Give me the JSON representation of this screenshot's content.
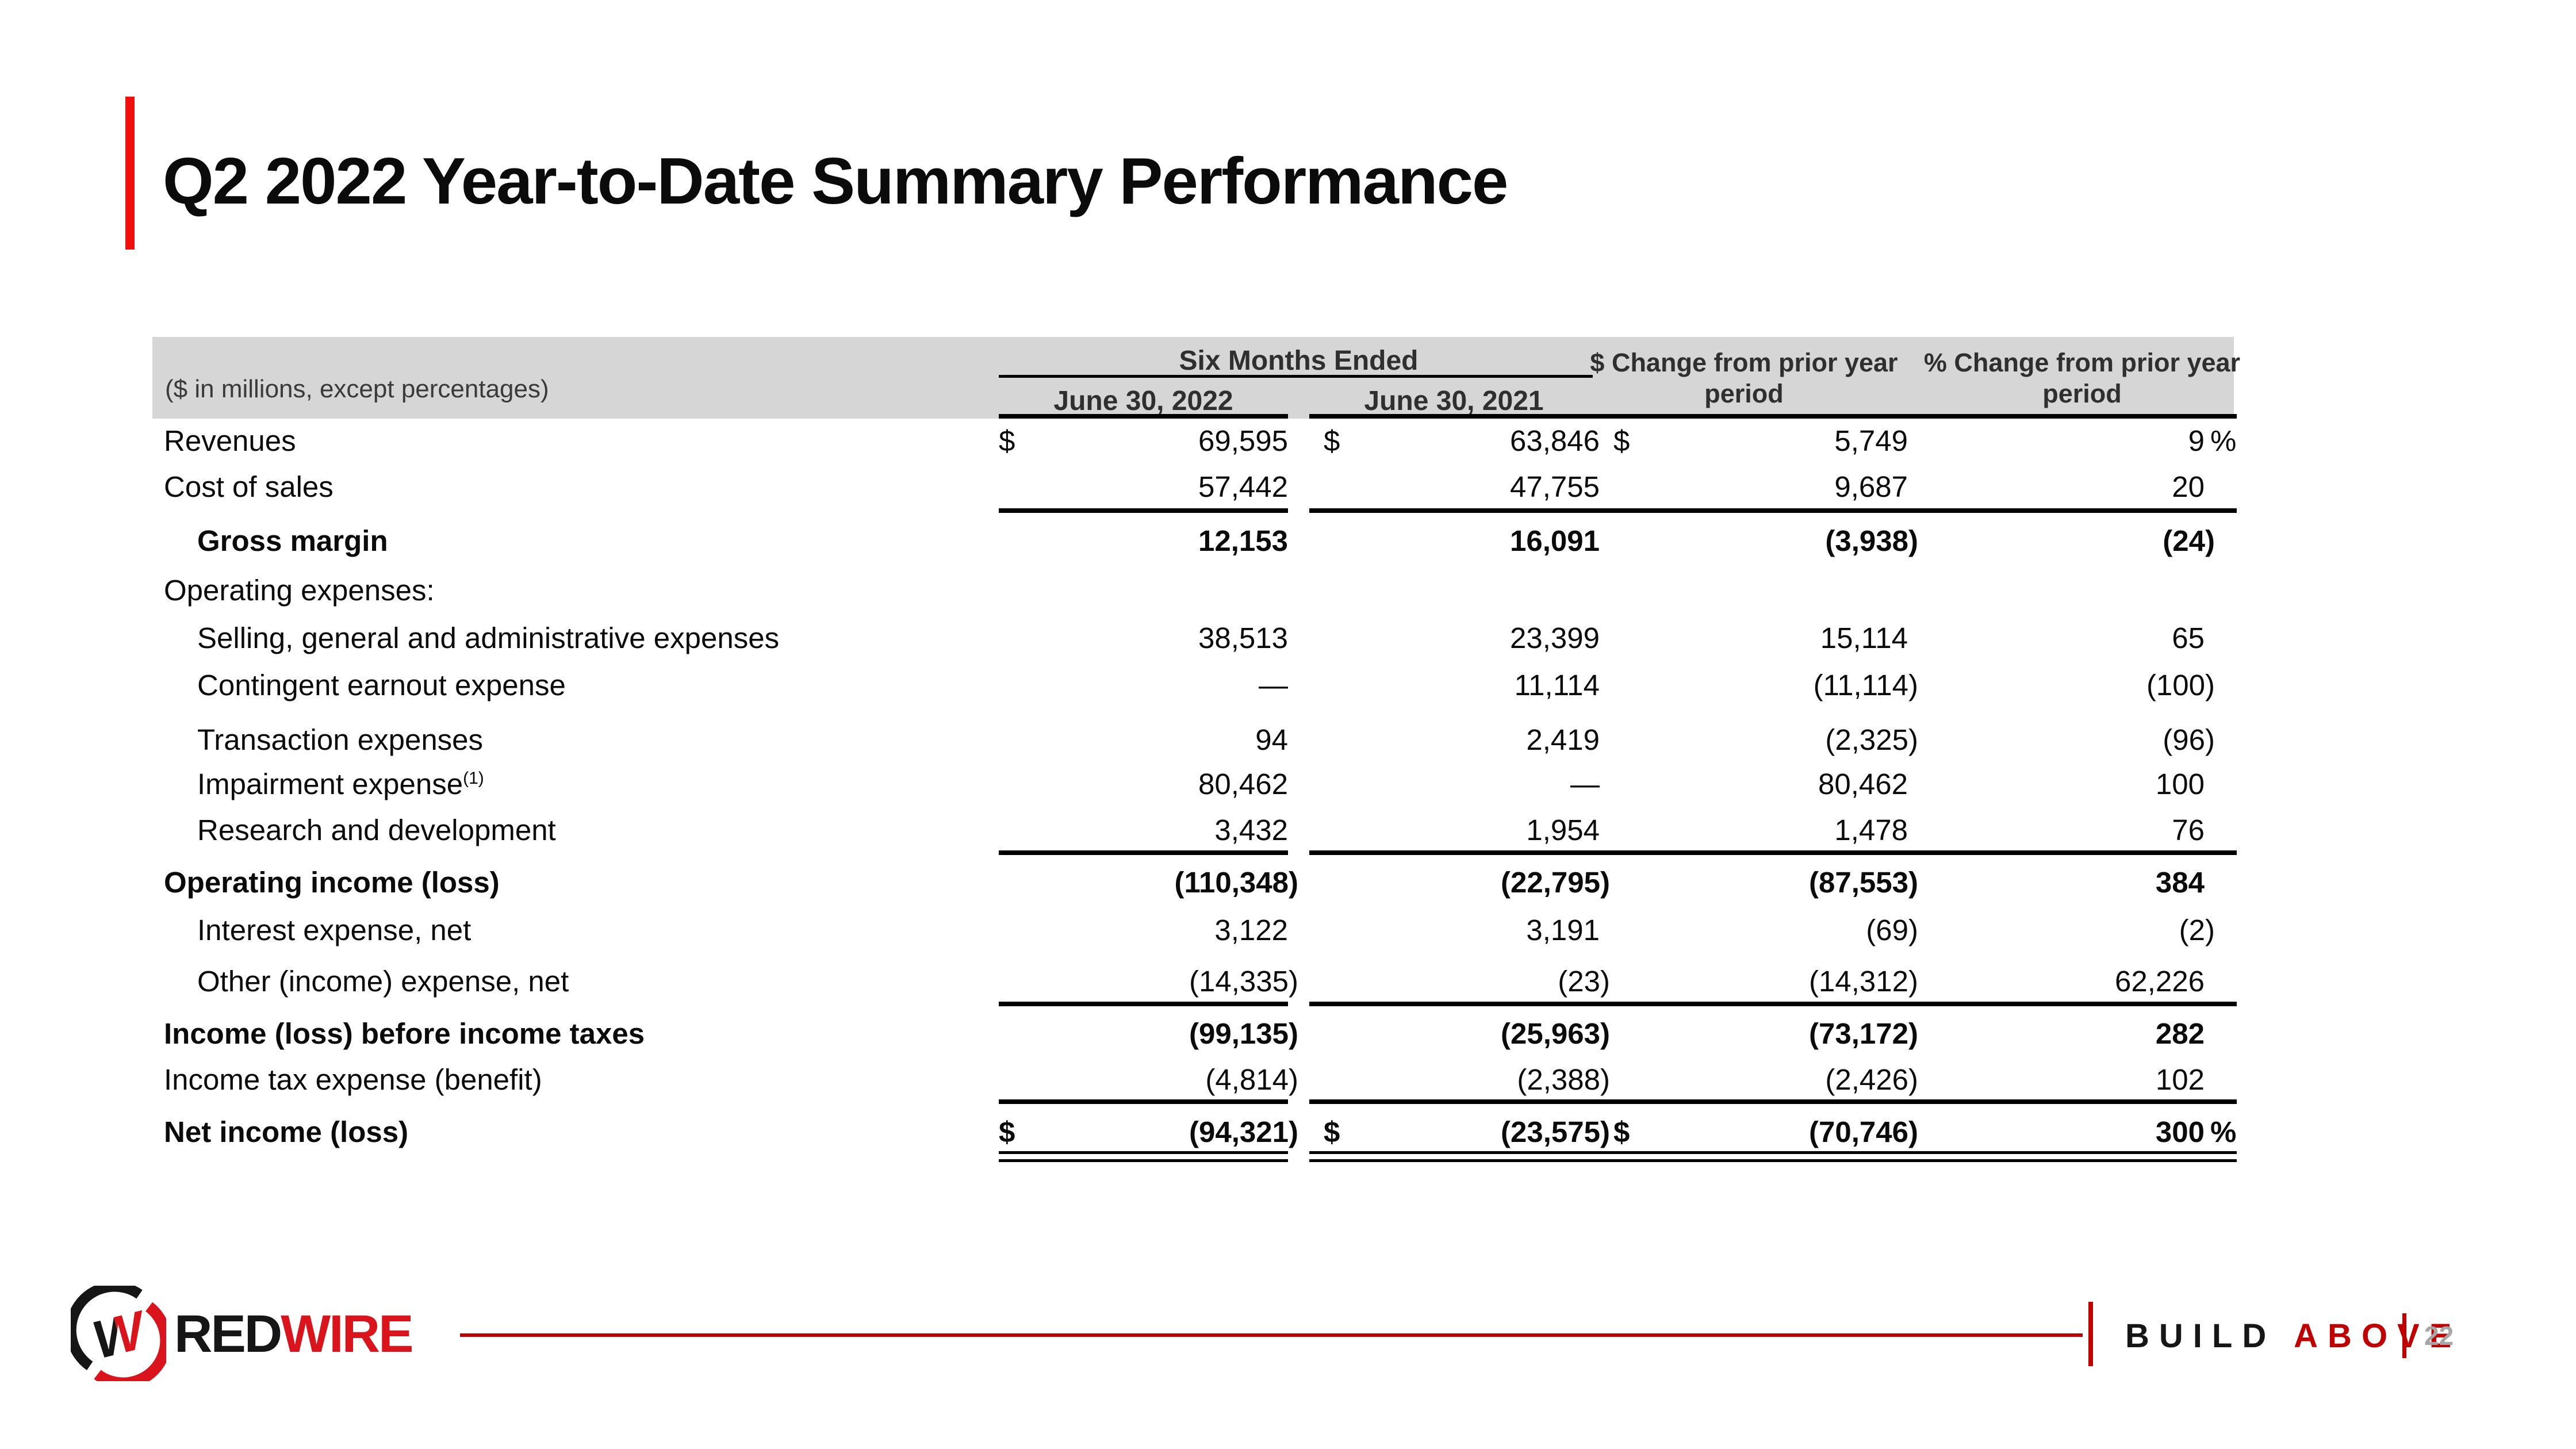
{
  "title": "Q2 2022 Year-to-Date Summary Performance",
  "colors": {
    "accent": "#f10e0e",
    "brand": "#d9141c",
    "rule_red": "#c00000",
    "band": "#d6d6d6",
    "muted": "#a6a6a6"
  },
  "table": {
    "header": {
      "caption": "($ in millions, except percentages)",
      "group": "Six Months Ended",
      "col_2022": "June 30, 2022",
      "col_2021": "June 30, 2021",
      "col_dollar_change": "$ Change from prior year period",
      "col_percent_change": "% Change from prior year period"
    },
    "rows": [
      {
        "label": "Revenues",
        "indent": 0,
        "bold": false,
        "d1": "$",
        "v1": "69,595",
        "d2": "$",
        "v2": "63,846",
        "d3": "$",
        "v3": "5,749",
        "v4": "9",
        "pct": "%"
      },
      {
        "label": "Cost of sales",
        "indent": 0,
        "bold": false,
        "d1": "",
        "v1": "57,442",
        "d2": "",
        "v2": "47,755",
        "d3": "",
        "v3": "9,687",
        "v4": "20",
        "pct": ""
      },
      {
        "label": "Gross margin",
        "indent": 1,
        "bold": true,
        "d1": "",
        "v1": "12,153",
        "d2": "",
        "v2": "16,091",
        "d3": "",
        "v3": "(3,938)",
        "v4": "(24)",
        "pct": ""
      },
      {
        "label": "Operating expenses:",
        "indent": 0,
        "bold": false,
        "d1": "",
        "v1": "",
        "d2": "",
        "v2": "",
        "d3": "",
        "v3": "",
        "v4": "",
        "pct": ""
      },
      {
        "label": "Selling, general and administrative expenses",
        "indent": 1,
        "bold": false,
        "d1": "",
        "v1": "38,513",
        "d2": "",
        "v2": "23,399",
        "d3": "",
        "v3": "15,114",
        "v4": "65",
        "pct": ""
      },
      {
        "label": "Contingent earnout expense",
        "indent": 1,
        "bold": false,
        "d1": "",
        "v1": "—",
        "d2": "",
        "v2": "11,114",
        "d3": "",
        "v3": "(11,114)",
        "v4": "(100)",
        "pct": ""
      },
      {
        "label": "Transaction expenses",
        "indent": 1,
        "bold": false,
        "d1": "",
        "v1": "94",
        "d2": "",
        "v2": "2,419",
        "d3": "",
        "v3": "(2,325)",
        "v4": "(96)",
        "pct": ""
      },
      {
        "label": "Impairment expense",
        "sup": "(1)",
        "indent": 1,
        "bold": false,
        "d1": "",
        "v1": "80,462",
        "d2": "",
        "v2": "—",
        "d3": "",
        "v3": "80,462",
        "v4": "100",
        "pct": ""
      },
      {
        "label": "Research and development",
        "indent": 1,
        "bold": false,
        "d1": "",
        "v1": "3,432",
        "d2": "",
        "v2": "1,954",
        "d3": "",
        "v3": "1,478",
        "v4": "76",
        "pct": ""
      },
      {
        "label": "Operating income (loss)",
        "indent": 0,
        "bold": true,
        "d1": "",
        "v1": "(110,348)",
        "d2": "",
        "v2": "(22,795)",
        "d3": "",
        "v3": "(87,553)",
        "v4": "384",
        "pct": ""
      },
      {
        "label": "Interest expense, net",
        "indent": 1,
        "bold": false,
        "d1": "",
        "v1": "3,122",
        "d2": "",
        "v2": "3,191",
        "d3": "",
        "v3": "(69)",
        "v4": "(2)",
        "pct": ""
      },
      {
        "label": "Other (income) expense, net",
        "indent": 1,
        "bold": false,
        "d1": "",
        "v1": "(14,335)",
        "d2": "",
        "v2": "(23)",
        "d3": "",
        "v3": "(14,312)",
        "v4": "62,226",
        "pct": ""
      },
      {
        "label": "Income (loss) before income taxes",
        "indent": 0,
        "bold": true,
        "d1": "",
        "v1": "(99,135)",
        "d2": "",
        "v2": "(25,963)",
        "d3": "",
        "v3": "(73,172)",
        "v4": "282",
        "pct": ""
      },
      {
        "label": "Income tax expense (benefit)",
        "indent": 0,
        "bold": false,
        "d1": "",
        "v1": "(4,814)",
        "d2": "",
        "v2": "(2,388)",
        "d3": "",
        "v3": "(2,426)",
        "v4": "102",
        "pct": ""
      },
      {
        "label": "Net income (loss)",
        "indent": 0,
        "bold": true,
        "d1": "$",
        "v1": "(94,321)",
        "d2": "$",
        "v2": "(23,575)",
        "d3": "$",
        "v3": "(70,746)",
        "v4": "300",
        "pct": "%"
      }
    ]
  },
  "footer": {
    "logo_black_text": "RED",
    "logo_red_text": "WIRE",
    "logo_mark_letter": "W",
    "tagline_black": "BUILD",
    "tagline_red": "ABOVE",
    "page_number": "22"
  }
}
